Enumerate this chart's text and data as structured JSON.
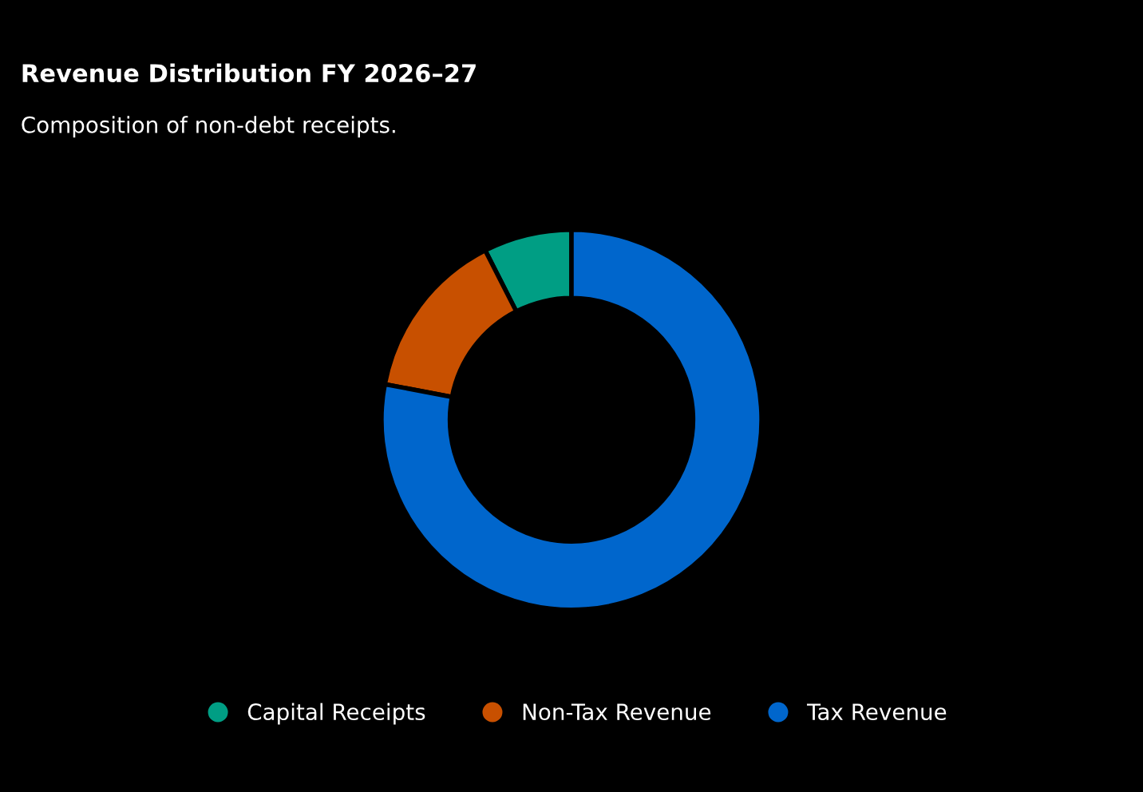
{
  "chart_data": {
    "type": "donut",
    "title": "Revenue Distribution FY 2026–27",
    "subtitle": "Composition of non-debt receipts.",
    "categories": [
      "Capital Receipts",
      "Non-Tax Revenue",
      "Tax Revenue"
    ],
    "values": [
      7.5,
      14.5,
      78
    ],
    "colors": [
      "#009e84",
      "#c85000",
      "#0066cc"
    ],
    "legend": "bottom"
  }
}
